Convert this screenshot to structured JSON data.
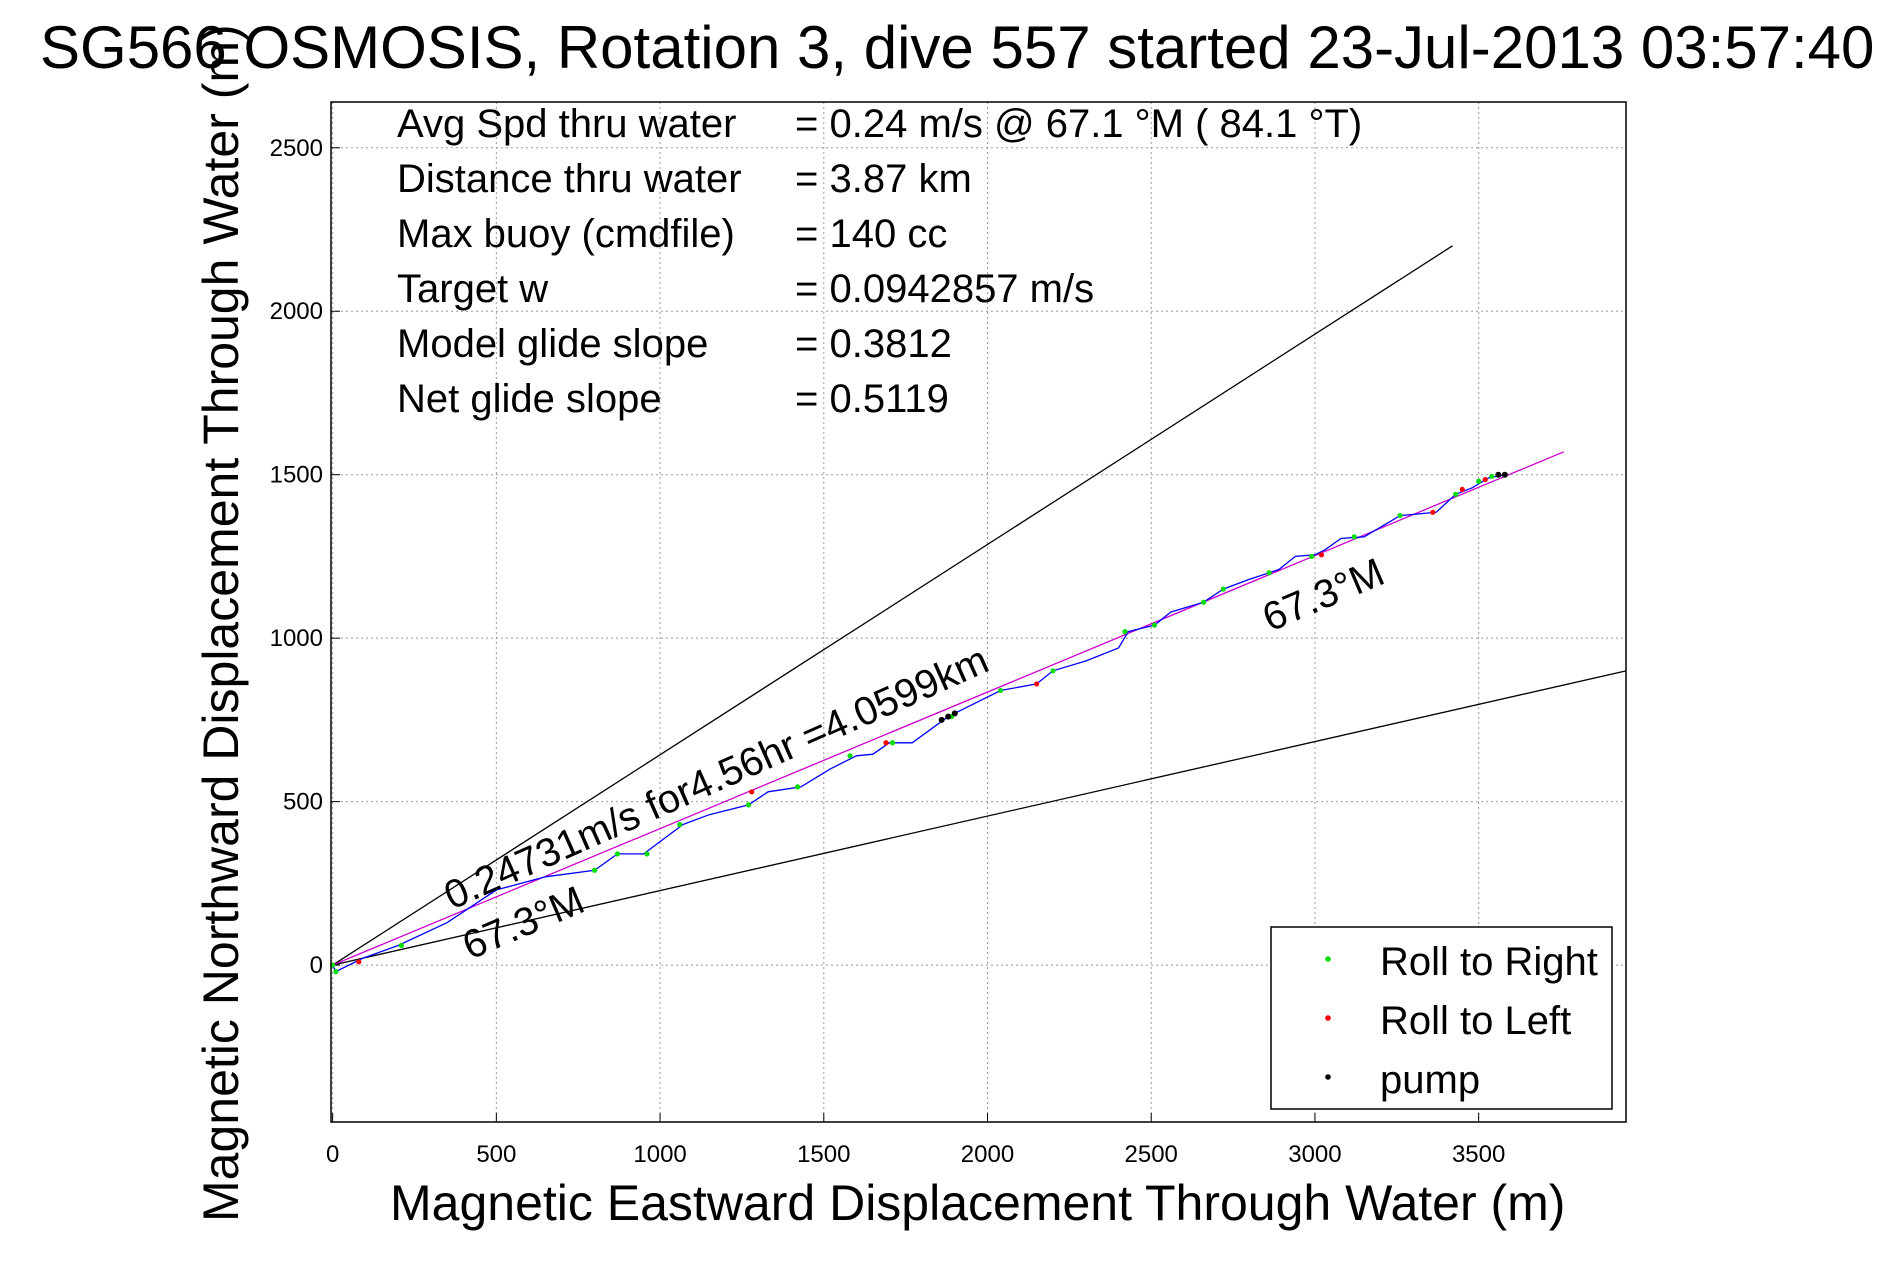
{
  "chart_data": {
    "type": "line",
    "title": "SG566 OSMOSIS, Rotation 3, dive 557 started 23-Jul-2013 03:57:40",
    "xlabel": "Magnetic Eastward Displacement Through Water (m)",
    "ylabel": "Magnetic Northward Displacement Through Water (m)",
    "xlim": [
      -5,
      3950
    ],
    "ylim": [
      -480,
      2640
    ],
    "xticks": [
      0,
      500,
      1000,
      1500,
      2000,
      2500,
      3000,
      3500
    ],
    "yticks": [
      0,
      500,
      1000,
      1500,
      2000,
      2500
    ],
    "grid": true,
    "stats": [
      {
        "label": "Avg Spd thru water",
        "value": "=  0.24 m/s @  67.1 °M ( 84.1 °T)"
      },
      {
        "label": "Distance thru water",
        "value": "=  3.87 km"
      },
      {
        "label": "Max buoy (cmdfile)",
        "value": "= 140 cc"
      },
      {
        "label": "Target w",
        "value": "= 0.0942857 m/s"
      },
      {
        "label": "Model glide slope",
        "value": "= 0.3812"
      },
      {
        "label": "Net glide slope",
        "value": "= 0.5119"
      }
    ],
    "annotations": {
      "speed": "0.24731m/s for4.56hr =4.0599km",
      "heading_near": "67.3°M",
      "heading_far": "67.3°M"
    },
    "reference_lines": [
      {
        "x": [
          0,
          3420
        ],
        "y": [
          0,
          2200
        ],
        "color": "#000000"
      },
      {
        "x": [
          0,
          3950
        ],
        "y": [
          0,
          900
        ],
        "color": "#000000"
      },
      {
        "x": [
          0,
          3760
        ],
        "y": [
          0,
          1570
        ],
        "color": "#cc00cc"
      }
    ],
    "series": [
      {
        "color": "#0000ff",
        "x": [
          0,
          10,
          90,
          200,
          350,
          500,
          650,
          800,
          870,
          950,
          1070,
          1150,
          1270,
          1330,
          1430,
          1520,
          1600,
          1650,
          1700,
          1770,
          1880,
          1920,
          2040,
          2150,
          2200,
          2300,
          2400,
          2430,
          2510,
          2560,
          2660,
          2720,
          2800,
          2890,
          2940,
          3000,
          3030,
          3080,
          3150,
          3260,
          3370,
          3430,
          3480,
          3530,
          3580
        ],
        "y": [
          0,
          -20,
          20,
          60,
          130,
          230,
          270,
          290,
          340,
          340,
          430,
          460,
          490,
          530,
          545,
          600,
          640,
          645,
          680,
          680,
          760,
          780,
          840,
          860,
          900,
          930,
          970,
          1020,
          1040,
          1080,
          1110,
          1150,
          1180,
          1210,
          1250,
          1255,
          1270,
          1305,
          1310,
          1375,
          1385,
          1440,
          1460,
          1490,
          1500
        ]
      }
    ],
    "roll_right": {
      "x": [
        0,
        10,
        210,
        800,
        870,
        960,
        1060,
        1270,
        1420,
        1580,
        1710,
        1890,
        2040,
        2200,
        2420,
        2510,
        2660,
        2720,
        2860,
        2990,
        3120,
        3260,
        3430,
        3500,
        3540
      ],
      "y": [
        0,
        -20,
        60,
        290,
        340,
        340,
        430,
        490,
        545,
        640,
        680,
        760,
        840,
        900,
        1020,
        1040,
        1110,
        1150,
        1200,
        1250,
        1310,
        1375,
        1440,
        1480,
        1495
      ]
    },
    "roll_left": {
      "x": [
        80,
        1280,
        1690,
        2150,
        3020,
        3360,
        3450,
        3520
      ],
      "y": [
        10,
        530,
        680,
        860,
        1255,
        1385,
        1455,
        1485
      ]
    },
    "pump": {
      "x": [
        1860,
        1880,
        1900,
        3560,
        3580
      ],
      "y": [
        750,
        760,
        770,
        1500,
        1500
      ]
    },
    "legend": {
      "position": "bottom-right",
      "entries": [
        {
          "label": "Roll to Right",
          "color": "#00dd00"
        },
        {
          "label": "Roll to Left",
          "color": "#ff0000"
        },
        {
          "label": "pump",
          "color": "#000000"
        }
      ]
    }
  }
}
